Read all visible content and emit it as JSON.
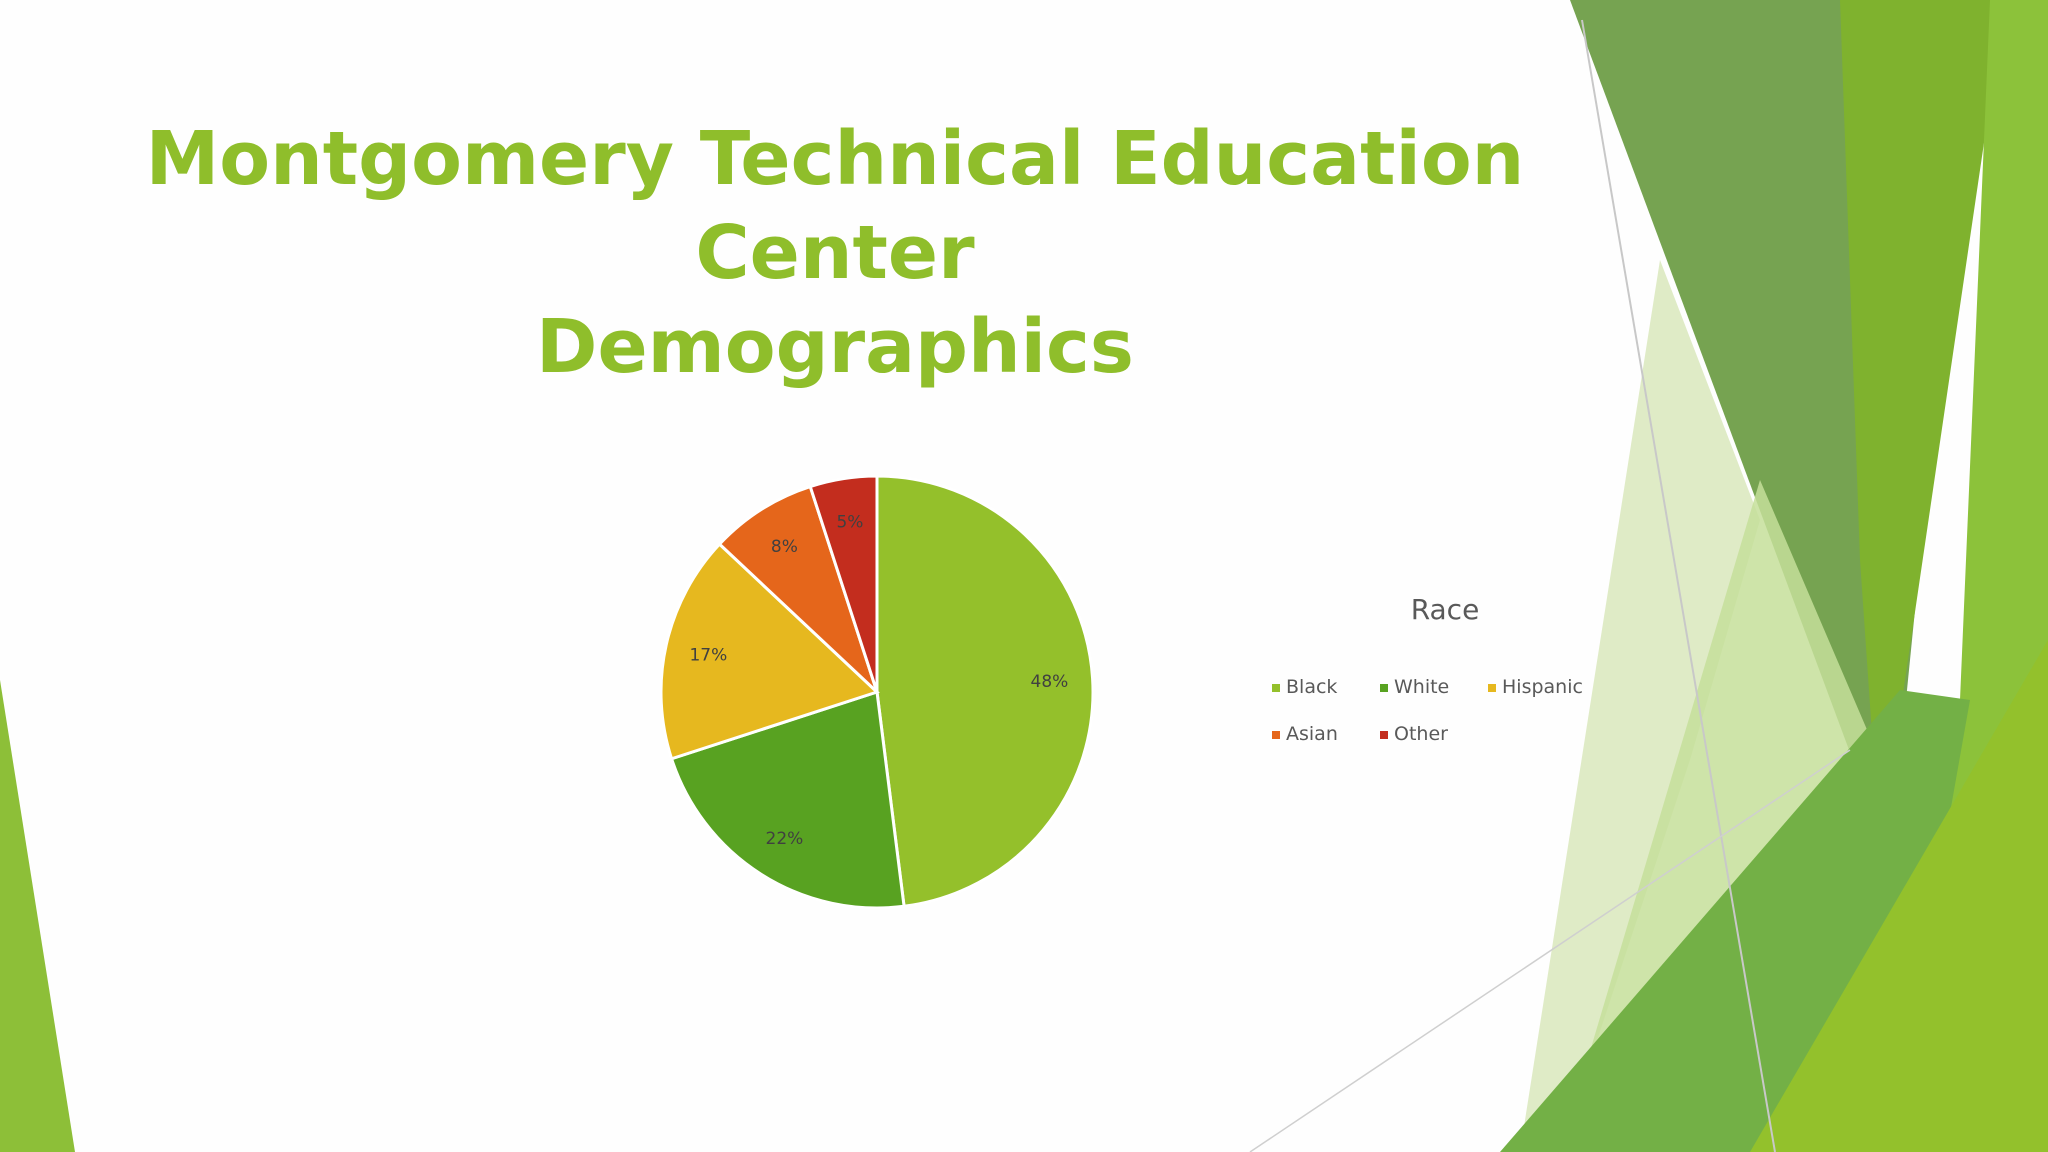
{
  "slide": {
    "title_line1": "Montgomery Technical Education Center",
    "title_line2": "Demographics"
  },
  "colors": {
    "title": "#8fbe2b",
    "black_series": "#94c02b",
    "white_series": "#58a221",
    "hispanic_series": "#e6b81f",
    "asian_series": "#e5661b",
    "other_series": "#c32d1e"
  },
  "chart_data": {
    "type": "pie",
    "title": "Race",
    "legend_position": "right",
    "categories": [
      "Black",
      "White",
      "Hispanic",
      "Asian",
      "Other"
    ],
    "values": [
      48,
      22,
      17,
      8,
      5
    ],
    "data_labels": [
      "48%",
      "22%",
      "17%",
      "8%",
      "5%"
    ],
    "colors": [
      "#94c02b",
      "#58a221",
      "#e6b81f",
      "#e5661b",
      "#c32d1e"
    ]
  }
}
